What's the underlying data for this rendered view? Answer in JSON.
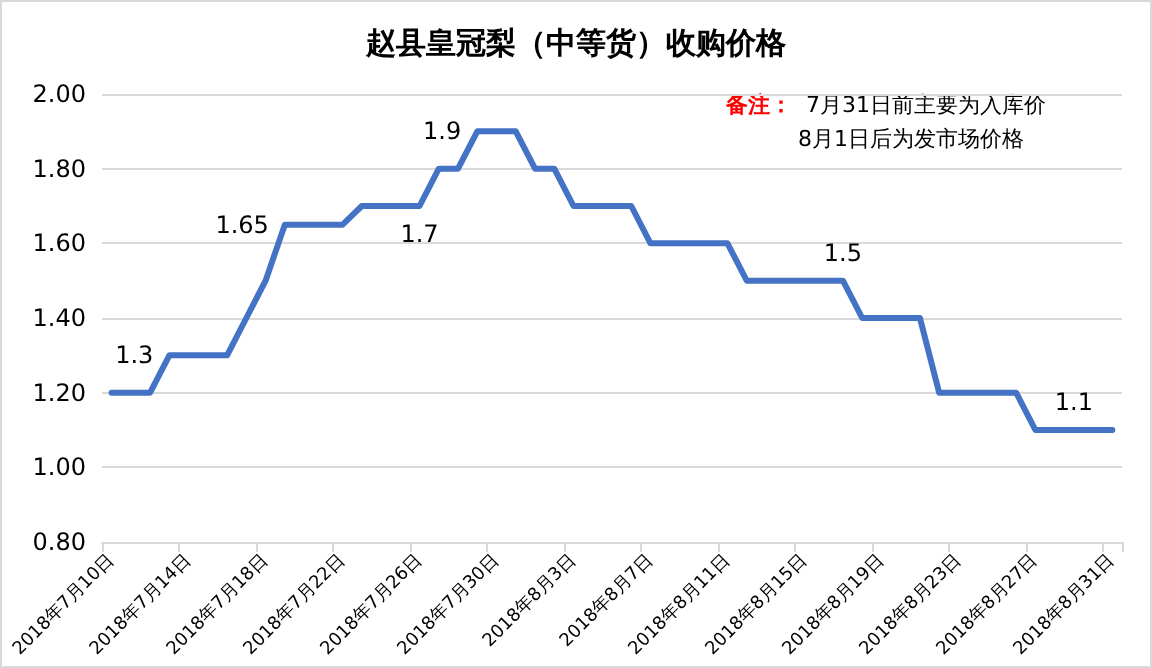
{
  "chart_data": {
    "type": "line",
    "title": "赵县皇冠梨（中等货）收购价格",
    "annotations": [
      "备注：",
      "7月31日前主要为入库价",
      "8月1日后为发市场价格"
    ],
    "categories": [
      "2018年7月10日",
      null,
      null,
      null,
      "2018年7月14日",
      null,
      null,
      null,
      "2018年7月18日",
      null,
      null,
      null,
      "2018年7月22日",
      null,
      null,
      null,
      "2018年7月26日",
      null,
      null,
      null,
      "2018年7月30日",
      null,
      null,
      null,
      "2018年8月3日",
      null,
      null,
      null,
      "2018年8月7日",
      null,
      null,
      null,
      "2018年8月11日",
      null,
      null,
      null,
      "2018年8月15日",
      null,
      null,
      null,
      "2018年8月19日",
      null,
      null,
      null,
      "2018年8月23日",
      null,
      null,
      null,
      "2018年8月27日",
      null,
      null,
      null,
      "2018年8月31日"
    ],
    "series": [
      {
        "color": "#4472c4",
        "values": [
          1.2,
          1.2,
          1.2,
          1.3,
          1.3,
          1.3,
          1.3,
          1.4,
          1.5,
          1.65,
          1.65,
          1.65,
          1.65,
          1.7,
          1.7,
          1.7,
          1.7,
          1.8,
          1.8,
          1.9,
          1.9,
          1.9,
          1.8,
          1.8,
          1.7,
          1.7,
          1.7,
          1.7,
          1.6,
          1.6,
          1.6,
          1.6,
          1.6,
          1.5,
          1.5,
          1.5,
          1.5,
          1.5,
          1.5,
          1.4,
          1.4,
          1.4,
          1.4,
          1.2,
          1.2,
          1.2,
          1.2,
          1.2,
          1.1,
          1.1,
          1.1,
          1.1,
          1.1
        ],
        "value_labels": [
          null,
          null,
          null,
          "1.3",
          null,
          null,
          null,
          null,
          null,
          "1.65",
          null,
          null,
          null,
          null,
          null,
          null,
          "1.7",
          null,
          null,
          "1.9",
          null,
          null,
          null,
          null,
          null,
          null,
          null,
          null,
          null,
          null,
          null,
          null,
          null,
          null,
          null,
          null,
          null,
          null,
          "1.5",
          null,
          null,
          null,
          null,
          null,
          null,
          null,
          null,
          null,
          null,
          null,
          "1.1",
          null,
          null
        ]
      }
    ],
    "ylim": [
      0.8,
      2.0
    ],
    "yticks": [
      {
        "value": 0.8,
        "label": "0.80"
      },
      {
        "value": 1.0,
        "label": "1.00"
      },
      {
        "value": 1.2,
        "label": "1.20"
      },
      {
        "value": 1.4,
        "label": "1.40"
      },
      {
        "value": 1.6,
        "label": "1.60"
      },
      {
        "value": 1.8,
        "label": "1.80"
      },
      {
        "value": 2.0,
        "label": "2.00"
      }
    ],
    "grid": "y",
    "marker": "none",
    "line_style": "solid"
  }
}
